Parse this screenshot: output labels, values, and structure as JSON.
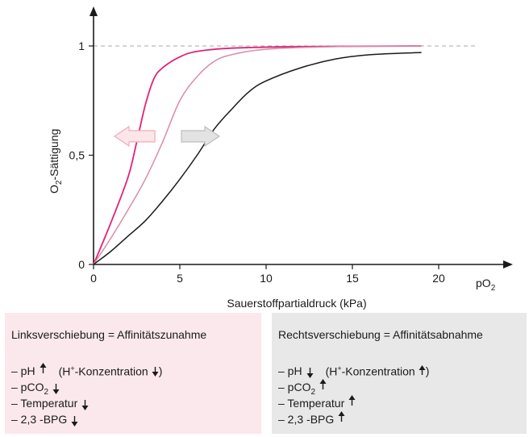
{
  "colors": {
    "strong_left": "#e0237a",
    "mild_left": "#d98aa6",
    "normal": "#1a1a1a",
    "left_box_bg": "#fbe8ec",
    "right_box_bg": "#e8e8e8",
    "left_arrow_fill": "#fde6ea",
    "left_arrow_stroke": "#f2aab6",
    "right_arrow_fill": "#e3e3e3",
    "right_arrow_stroke": "#bdbdbd",
    "dashed_line": "#aaaaaa"
  },
  "chart_data": {
    "type": "line",
    "xlabel": "Sauerstoffpartialdruck (kPa)",
    "ylabel_main": "O",
    "ylabel_sub": "2",
    "ylabel_rest": "-Sättigung",
    "x_end_label_main": "pO",
    "x_end_label_sub": "2",
    "xlim": [
      0,
      20
    ],
    "ylim": [
      0,
      1
    ],
    "x_ticks": [
      0,
      5,
      10,
      15,
      20
    ],
    "x_tick_labels": [
      "0",
      "5",
      "10",
      "15",
      "20"
    ],
    "y_ticks": [
      0,
      0.5,
      1
    ],
    "y_tick_labels": [
      "0",
      "0,5",
      "1"
    ],
    "reference_line_y": 1,
    "series": [
      {
        "color_key": "strong_left",
        "x": [
          0,
          1,
          2,
          2.5,
          3,
          3.5,
          4,
          5,
          6,
          8,
          12,
          19
        ],
        "y": [
          0,
          0.19,
          0.4,
          0.56,
          0.73,
          0.85,
          0.9,
          0.95,
          0.975,
          0.99,
          0.997,
          1.0
        ]
      },
      {
        "color_key": "mild_left",
        "x": [
          0,
          1,
          2,
          3,
          4,
          5,
          6,
          7,
          8,
          10,
          14,
          19
        ],
        "y": [
          0,
          0.12,
          0.25,
          0.39,
          0.56,
          0.75,
          0.86,
          0.93,
          0.96,
          0.985,
          0.997,
          1.0
        ]
      },
      {
        "color_key": "normal",
        "x": [
          0,
          1,
          2,
          3,
          4,
          5,
          6,
          7,
          8,
          9,
          10,
          12,
          14,
          16,
          19
        ],
        "y": [
          0,
          0.06,
          0.13,
          0.2,
          0.29,
          0.39,
          0.5,
          0.62,
          0.71,
          0.79,
          0.84,
          0.9,
          0.94,
          0.96,
          0.97
        ]
      }
    ]
  },
  "left_box": {
    "title": "Linksverschiebung = Affinitätszunahme",
    "rows": [
      {
        "text": "– pH",
        "dir": "up",
        "paren_open": "(H",
        "sup": "+",
        "paren_rest": "-Konzentration",
        "paren_dir": "down",
        "paren_close": ")"
      },
      {
        "text": "– pCO",
        "sub": "2",
        "dir": "down"
      },
      {
        "text": "– Temperatur",
        "dir": "down"
      },
      {
        "text": "– 2,3 -BPG",
        "dir": "down"
      }
    ]
  },
  "right_box": {
    "title": "Rechtsverschiebung = Affinitätsabnahme",
    "rows": [
      {
        "text": "– pH",
        "dir": "down",
        "paren_open": "(H",
        "sup": "+",
        "paren_rest": "-Konzentration",
        "paren_dir": "up",
        "paren_close": ")"
      },
      {
        "text": "– pCO",
        "sub": "2",
        "dir": "up"
      },
      {
        "text": "– Temperatur",
        "dir": "up"
      },
      {
        "text": "– 2,3 -BPG",
        "dir": "up"
      }
    ]
  }
}
